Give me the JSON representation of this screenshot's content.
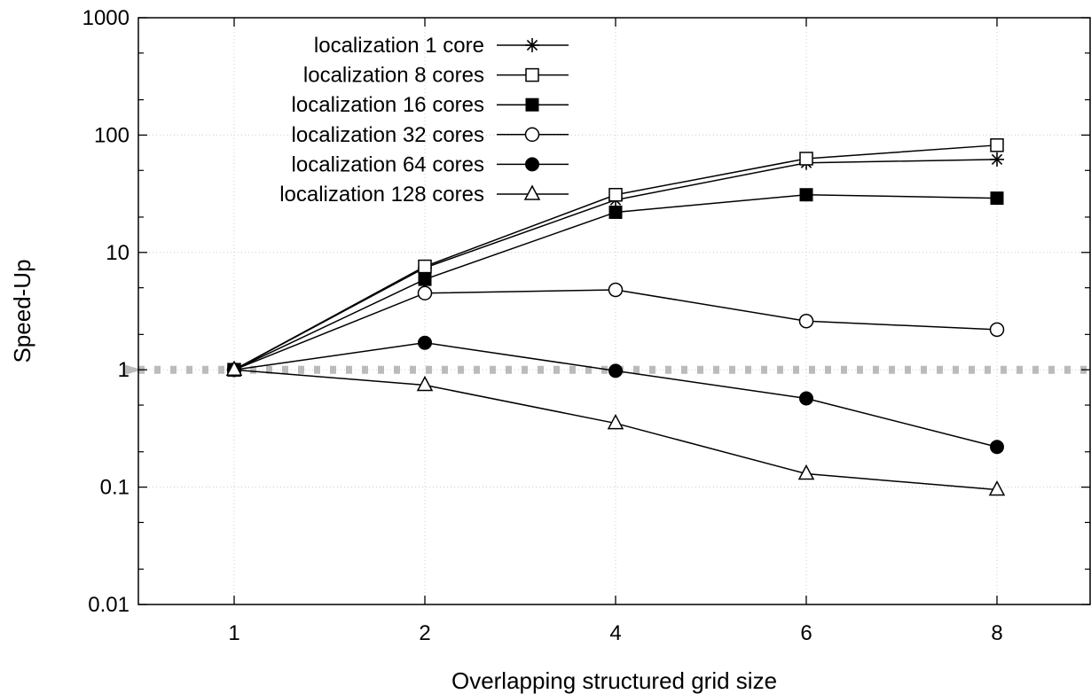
{
  "chart_data": {
    "type": "line",
    "title": "",
    "xlabel": "Overlapping structured grid size",
    "ylabel": "Speed-Up",
    "y_scale": "log",
    "ylim": [
      0.01,
      1000
    ],
    "y_ticks": [
      0.01,
      0.1,
      1,
      10,
      100,
      1000
    ],
    "y_tick_labels": [
      "0.01",
      "0.1",
      "1",
      "10",
      "100",
      "1000"
    ],
    "categories": [
      "1",
      "2",
      "4",
      "6",
      "8"
    ],
    "grid": true,
    "legend_position": "top-left",
    "reference_line": {
      "y": 1,
      "style": "dashed",
      "color": "#bbbbbb"
    },
    "series": [
      {
        "name": "localization 1 core",
        "marker": "star",
        "values": [
          1,
          7.4,
          28,
          58,
          62
        ]
      },
      {
        "name": "localization 8 cores",
        "marker": "open-square",
        "values": [
          1,
          7.6,
          31,
          63,
          82
        ]
      },
      {
        "name": "localization 16 cores",
        "marker": "filled-square",
        "values": [
          1,
          5.9,
          22,
          31,
          29
        ]
      },
      {
        "name": "localization 32 cores",
        "marker": "open-circle",
        "values": [
          1,
          4.5,
          4.8,
          2.6,
          2.2
        ]
      },
      {
        "name": "localization 64 cores",
        "marker": "filled-circle",
        "values": [
          1,
          1.7,
          0.98,
          0.57,
          0.22
        ]
      },
      {
        "name": "localization 128 cores",
        "marker": "open-triangle",
        "values": [
          1,
          0.74,
          0.35,
          0.13,
          0.095
        ]
      }
    ]
  }
}
